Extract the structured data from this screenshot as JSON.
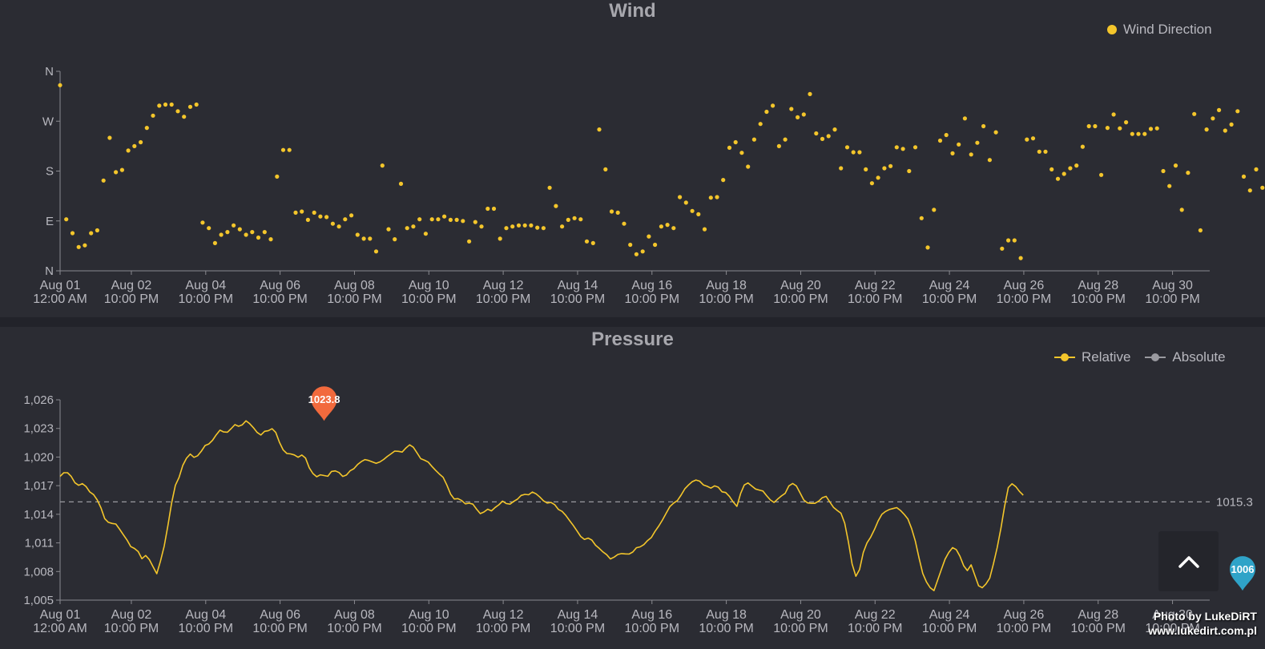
{
  "colors": {
    "background": "#2b2c33",
    "axis": "#8a8a90",
    "text": "#b8b8bf",
    "series": "#f4c62b",
    "absolute": "#9a9aa0",
    "max_pin": "#f26a3d",
    "min_pin": "#2fa3c8"
  },
  "icons": {
    "scroll_top": "chevron-up-icon"
  },
  "watermark": {
    "line1": "Photo by LukeDiRT",
    "line2": "www.lukedirt.com.pl"
  },
  "chart_data": [
    {
      "type": "scatter",
      "title": "Wind",
      "legend": {
        "placement": "top-right",
        "entries": [
          "Wind Direction"
        ]
      },
      "y_ticks": [
        "N",
        "W",
        "S",
        "E",
        "N"
      ],
      "y_degrees": [
        360,
        270,
        180,
        90,
        0
      ],
      "ylim": [
        0,
        360
      ],
      "x_ticks": [
        [
          "Aug 01",
          "12:00 AM"
        ],
        [
          "Aug 02",
          "10:00 PM"
        ],
        [
          "Aug 04",
          "10:00 PM"
        ],
        [
          "Aug 06",
          "10:00 PM"
        ],
        [
          "Aug 08",
          "10:00 PM"
        ],
        [
          "Aug 10",
          "10:00 PM"
        ],
        [
          "Aug 12",
          "10:00 PM"
        ],
        [
          "Aug 14",
          "10:00 PM"
        ],
        [
          "Aug 16",
          "10:00 PM"
        ],
        [
          "Aug 18",
          "10:00 PM"
        ],
        [
          "Aug 20",
          "10:00 PM"
        ],
        [
          "Aug 22",
          "10:00 PM"
        ],
        [
          "Aug 24",
          "10:00 PM"
        ],
        [
          "Aug 26",
          "10:00 PM"
        ],
        [
          "Aug 28",
          "10:00 PM"
        ],
        [
          "Aug 30",
          "10:00 PM"
        ]
      ],
      "series": [
        {
          "name": "Wind Direction",
          "step_hours": 4,
          "values": [
            335,
            93,
            68,
            43,
            46,
            68,
            73,
            163,
            240,
            178,
            182,
            217,
            225,
            232,
            258,
            280,
            298,
            300,
            300,
            288,
            278,
            296,
            300,
            87,
            77,
            50,
            65,
            70,
            82,
            75,
            65,
            70,
            60,
            70,
            57,
            170,
            218,
            218,
            105,
            107,
            92,
            105,
            98,
            97,
            85,
            80,
            93,
            100,
            65,
            58,
            58,
            35,
            190,
            75,
            57,
            157,
            77,
            80,
            93,
            67,
            93,
            93,
            98,
            92,
            92,
            90,
            53,
            88,
            80,
            112,
            112,
            58,
            77,
            80,
            82,
            82,
            82,
            78,
            77,
            150,
            117,
            80,
            92,
            95,
            93,
            53,
            50,
            255,
            183,
            107,
            105,
            85,
            47,
            30,
            35,
            62,
            47,
            80,
            83,
            77,
            133,
            123,
            108,
            102,
            75,
            132,
            133,
            164,
            222,
            232,
            213,
            188,
            237,
            265,
            287,
            298,
            225,
            237,
            292,
            277,
            282,
            319,
            248,
            238,
            243,
            255,
            185,
            223,
            214,
            214,
            183,
            158,
            168,
            185,
            189,
            223,
            220,
            180,
            223,
            95,
            42,
            110,
            235,
            245,
            212,
            228,
            275,
            210,
            231,
            261,
            200,
            250,
            40,
            55,
            55,
            23,
            237,
            239,
            215,
            215,
            183,
            166,
            175,
            185,
            190,
            224,
            261,
            261,
            173,
            258,
            282,
            257,
            268,
            247,
            247,
            247,
            256,
            257,
            180,
            153,
            190,
            110,
            177,
            283,
            73,
            255,
            275,
            290,
            253,
            264,
            288,
            170,
            145,
            183,
            150,
            75,
            72,
            90,
            75,
            55,
            225,
            155,
            235,
            203,
            153,
            168,
            238,
            255,
            300,
            277,
            75
          ]
        }
      ]
    },
    {
      "type": "line",
      "title": "Pressure",
      "legend": {
        "placement": "top-right",
        "entries": [
          "Relative",
          "Absolute"
        ]
      },
      "ylim": [
        1005,
        1026
      ],
      "y_ticks": [
        1005,
        1008,
        1011,
        1014,
        1017,
        1020,
        1023,
        1026
      ],
      "y_tick_labels": [
        "1,005",
        "1,008",
        "1,011",
        "1,014",
        "1,017",
        "1,020",
        "1,023",
        "1,026"
      ],
      "x_ticks": [
        [
          "Aug 01",
          "12:00 AM"
        ],
        [
          "Aug 02",
          "10:00 PM"
        ],
        [
          "Aug 04",
          "10:00 PM"
        ],
        [
          "Aug 06",
          "10:00 PM"
        ],
        [
          "Aug 08",
          "10:00 PM"
        ],
        [
          "Aug 10",
          "10:00 PM"
        ],
        [
          "Aug 12",
          "10:00 PM"
        ],
        [
          "Aug 14",
          "10:00 PM"
        ],
        [
          "Aug 16",
          "10:00 PM"
        ],
        [
          "Aug 18",
          "10:00 PM"
        ],
        [
          "Aug 20",
          "10:00 PM"
        ],
        [
          "Aug 22",
          "10:00 PM"
        ],
        [
          "Aug 24",
          "10:00 PM"
        ],
        [
          "Aug 26",
          "10:00 PM"
        ],
        [
          "Aug 28",
          "10:00 PM"
        ],
        [
          "Aug 30",
          "10:00 PM"
        ]
      ],
      "average": {
        "value": 1015.3,
        "label": "1015.3"
      },
      "max_marker": {
        "label": "1023.8",
        "value": 1023.8,
        "index": 71
      },
      "min_marker": {
        "label": "1006",
        "value": 1006,
        "index": 318
      },
      "series": [
        {
          "name": "Relative",
          "step_hours": 2.4,
          "values": [
            1017.97,
            1018.36,
            1018.36,
            1017.97,
            1017.3,
            1017.04,
            1017.21,
            1016.9,
            1016.34,
            1016.06,
            1015.5,
            1014.66,
            1013.54,
            1013.16,
            1013.04,
            1012.98,
            1012.43,
            1011.86,
            1011.31,
            1010.61,
            1010.42,
            1010.09,
            1009.34,
            1009.68,
            1009.25,
            1008.51,
            1007.77,
            1009.09,
            1010.68,
            1012.82,
            1015.17,
            1017.04,
            1017.86,
            1019.14,
            1019.88,
            1020.31,
            1019.97,
            1020.14,
            1020.62,
            1021.21,
            1021.37,
            1021.76,
            1022.33,
            1022.82,
            1022.63,
            1022.61,
            1022.98,
            1023.4,
            1023.23,
            1023.38,
            1023.8,
            1023.5,
            1023.07,
            1022.58,
            1022.31,
            1022.7,
            1022.76,
            1022.97,
            1022.58,
            1021.55,
            1020.74,
            1020.37,
            1020.33,
            1020.22,
            1019.98,
            1020.21,
            1019.9,
            1018.88,
            1018.27,
            1017.94,
            1018.14,
            1018.06,
            1017.99,
            1018.49,
            1018.55,
            1018.38,
            1017.97,
            1018.11,
            1018.56,
            1018.78,
            1019.21,
            1019.52,
            1019.73,
            1019.64,
            1019.49,
            1019.34,
            1019.49,
            1019.74,
            1020.07,
            1020.34,
            1020.62,
            1020.6,
            1020.52,
            1020.95,
            1021.28,
            1021.03,
            1020.43,
            1019.83,
            1019.67,
            1019.47,
            1019.01,
            1018.6,
            1018.22,
            1017.88,
            1017.08,
            1016.12,
            1015.6,
            1015.64,
            1015.44,
            1015.1,
            1015.16,
            1015.06,
            1014.54,
            1014.07,
            1014.24,
            1014.53,
            1014.36,
            1014.72,
            1015.0,
            1015.38,
            1015.12,
            1015.06,
            1015.36,
            1015.58,
            1015.98,
            1016.09,
            1016.05,
            1016.33,
            1016.15,
            1015.81,
            1015.41,
            1015.18,
            1015.24,
            1015.01,
            1014.51,
            1014.31,
            1013.89,
            1013.35,
            1012.84,
            1012.26,
            1011.68,
            1011.37,
            1011.5,
            1011.3,
            1010.75,
            1010.43,
            1010.05,
            1009.76,
            1009.32,
            1009.51,
            1009.79,
            1009.88,
            1009.85,
            1009.83,
            1010.04,
            1010.49,
            1010.59,
            1010.82,
            1011.25,
            1011.56,
            1012.21,
            1012.77,
            1013.4,
            1014.12,
            1014.81,
            1015.17,
            1015.43,
            1016.0,
            1016.67,
            1017.07,
            1017.42,
            1017.59,
            1017.47,
            1017.08,
            1016.94,
            1016.74,
            1016.98,
            1016.84,
            1016.36,
            1016.28,
            1015.87,
            1015.3,
            1014.83,
            1016.16,
            1017.07,
            1017.29,
            1016.97,
            1016.65,
            1016.54,
            1016.44,
            1015.95,
            1015.51,
            1015.24,
            1015.6,
            1015.93,
            1016.2,
            1016.98,
            1017.23,
            1016.98,
            1016.23,
            1015.5,
            1015.2,
            1015.15,
            1015.15,
            1015.38,
            1015.74,
            1015.88,
            1015.28,
            1014.73,
            1014.4,
            1014.11,
            1013.06,
            1011.1,
            1008.8,
            1007.5,
            1008.2,
            1010.0,
            1011.0,
            1011.6,
            1012.4,
            1013.3,
            1014.0,
            1014.3,
            1014.5,
            1014.6,
            1014.7,
            1014.4,
            1014.0,
            1013.5,
            1012.5,
            1011.2,
            1009.4,
            1007.8,
            1006.9,
            1006.3,
            1006.0,
            1007.1,
            1008.2,
            1009.3,
            1010.0,
            1010.5,
            1010.3,
            1009.6,
            1008.6,
            1008.1,
            1008.7,
            1007.6,
            1006.5,
            1006.3,
            1006.7,
            1007.3,
            1008.8,
            1010.5,
            1012.5,
            1014.8,
            1016.8,
            1017.2,
            1016.9,
            1016.4,
            1016.0
          ]
        }
      ]
    }
  ]
}
